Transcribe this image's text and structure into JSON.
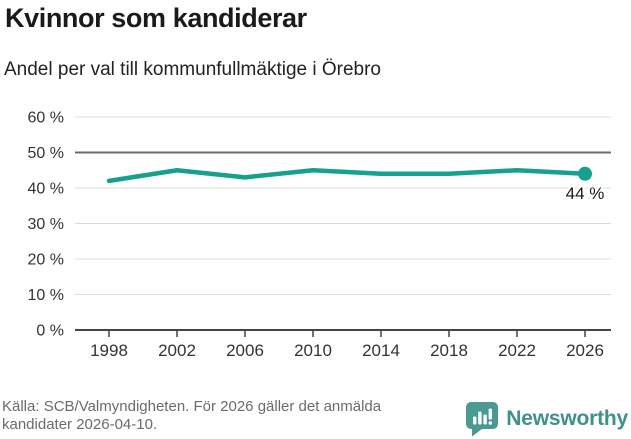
{
  "header": {
    "title": "Kvinnor som kandiderar",
    "subtitle": "Andel per val till kommunfullmäktige i Örebro"
  },
  "chart_data": {
    "type": "line",
    "categories": [
      "1998",
      "2002",
      "2006",
      "2010",
      "2014",
      "2018",
      "2022",
      "2026"
    ],
    "values": [
      42,
      45,
      43,
      45,
      44,
      44,
      45,
      44
    ],
    "title": "Kvinnor som kandiderar",
    "subtitle": "Andel per val till kommunfullmäktige i Örebro",
    "xlabel": "",
    "ylabel": "",
    "ylim": [
      0,
      60
    ],
    "ytick_step": 10,
    "ytick_suffix": " %",
    "reference_line": 50,
    "grid": true,
    "legend": "none",
    "end_label": "44 %",
    "line_color": "#16a18e"
  },
  "footer": {
    "source_line1": "Källa: SCB/Valmyndigheten. För 2026 gäller det anmälda",
    "source_line2": "kandidater 2026-04-10.",
    "brand": {
      "name": "Newsworthy",
      "icon": "newsworthy-bar-chart-bubble-icon",
      "color": "#3f918b"
    }
  }
}
